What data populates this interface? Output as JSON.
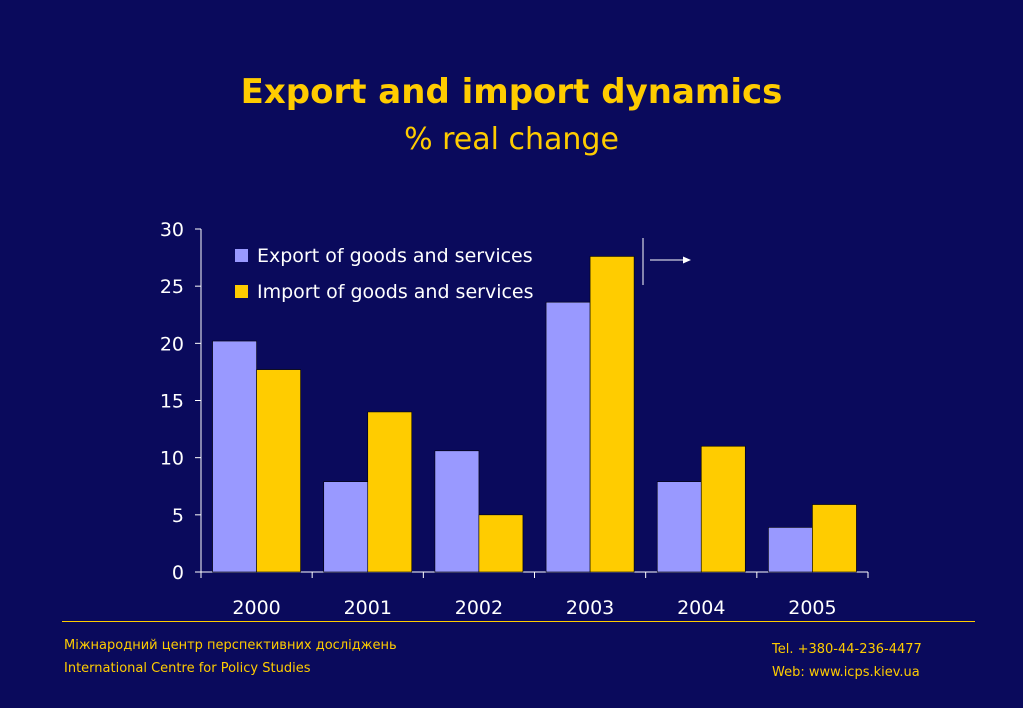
{
  "slide": {
    "title": "Export and import dynamics",
    "subtitle": "% real change"
  },
  "colors": {
    "background": "#0a0a5c",
    "accent": "#ffcc00",
    "export": "#9999ff",
    "import": "#ffcc00"
  },
  "chart_data": {
    "type": "bar",
    "title": "",
    "xlabel": "",
    "ylabel": "",
    "categories": [
      "2000",
      "2001",
      "2002",
      "2003",
      "2004",
      "2005"
    ],
    "series": [
      {
        "name": "Export of goods and services",
        "values": [
          20.2,
          7.9,
          10.6,
          23.6,
          7.9,
          3.9
        ],
        "color": "#9999ff"
      },
      {
        "name": "Import of goods and services",
        "values": [
          17.7,
          14.0,
          5.0,
          27.6,
          11.0,
          5.9
        ],
        "color": "#ffcc00"
      }
    ],
    "ylim": [
      0,
      30
    ],
    "yticks": [
      0,
      5,
      10,
      15,
      20,
      25,
      30
    ],
    "grid": false,
    "legend_position": "top-left"
  },
  "footer": {
    "org_ua": "Міжнародний центр перспективних досліджень",
    "org_en": "International Centre for Policy Studies",
    "tel": "Tel. +380-44-236-4477",
    "web": "Web: www.icps.kiev.ua"
  }
}
